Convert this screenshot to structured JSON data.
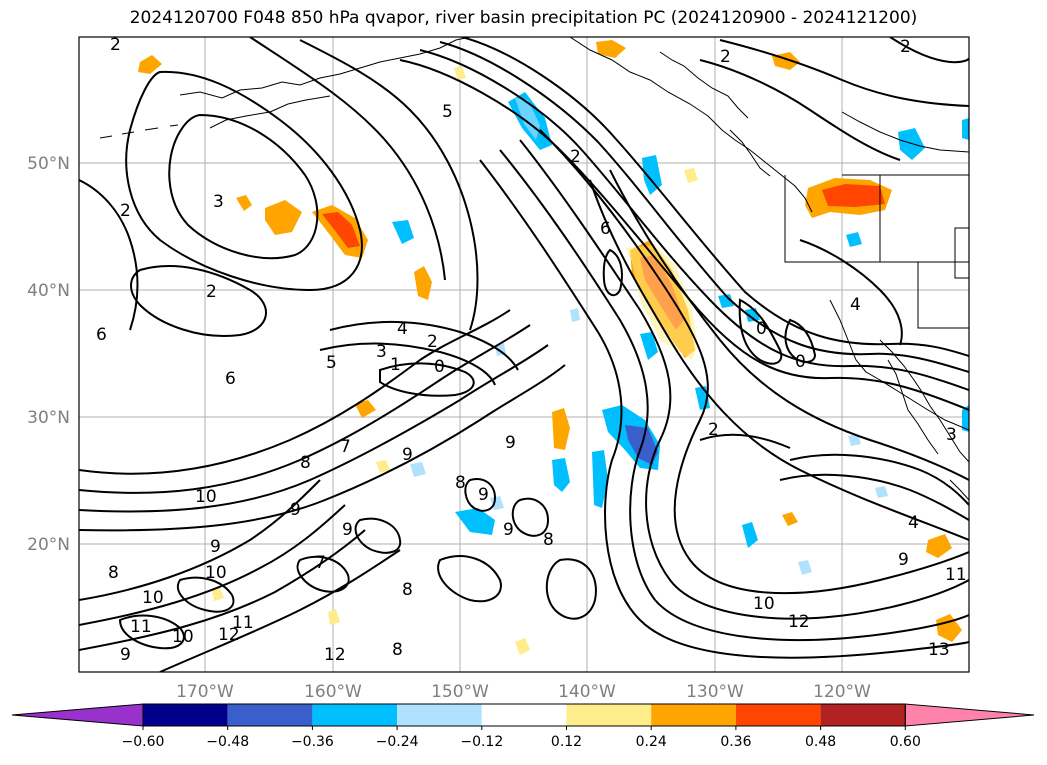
{
  "title": "2024120700 F048 850 hPa qvapor, river basin precipitation PC (2024120900 - 2024121200)",
  "map": {
    "lat_labels": [
      "50°N",
      "40°N",
      "30°N",
      "20°N"
    ],
    "lon_labels": [
      "170°W",
      "160°W",
      "150°W",
      "140°W",
      "130°W",
      "120°W"
    ],
    "contour_labels": [
      "2",
      "5",
      "2",
      "2",
      "2",
      "3",
      "2",
      "2",
      "6",
      "4",
      "2",
      "3",
      "1",
      "0",
      "5",
      "6",
      "6",
      "7",
      "9",
      "8",
      "9",
      "9",
      "10",
      "8",
      "9",
      "8",
      "9",
      "9",
      "7",
      "8",
      "9",
      "10",
      "10",
      "11",
      "10",
      "12",
      "11",
      "9",
      "8",
      "12",
      "8",
      "0",
      "0",
      "4",
      "3",
      "2",
      "9",
      "10",
      "12",
      "11",
      "13",
      "4"
    ]
  },
  "colorbar": {
    "labels": [
      "−0.60",
      "−0.48",
      "−0.36",
      "−0.24",
      "−0.12",
      "0.12",
      "0.24",
      "0.36",
      "0.48",
      "0.60"
    ],
    "colors": [
      "#9932cc",
      "#00008b",
      "#3a5fcd",
      "#00bfff",
      "#b0e2ff",
      "#ffffff",
      "#ffec8b",
      "#ffa500",
      "#ff4500",
      "#b22222",
      "#ff82ab"
    ]
  }
}
